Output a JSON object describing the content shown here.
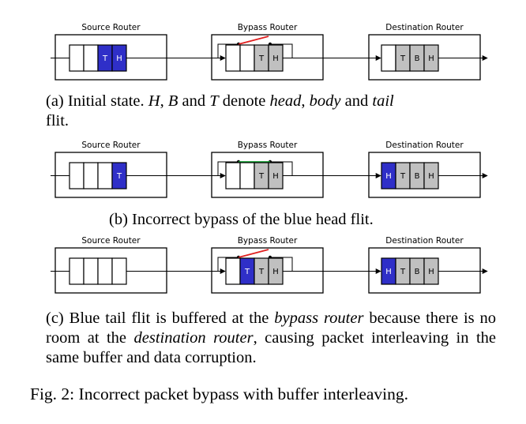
{
  "colors": {
    "head_blue": "#2f2fc8",
    "body_gray": "#c0c0c0",
    "bypass_open": "#e02020",
    "bypass_closed": "#10a030"
  },
  "routers": {
    "source": "Source Router",
    "bypass": "Bypass Router",
    "destination": "Destination Router"
  },
  "panels": [
    {
      "id": "a",
      "bypass_state": "open",
      "source_flits": [
        "",
        "",
        "T",
        "H"
      ],
      "bypass_flits": [
        "",
        "",
        "T",
        "H"
      ],
      "dest_flits": [
        "",
        "T",
        "B",
        "H"
      ]
    },
    {
      "id": "b",
      "bypass_state": "closed",
      "source_flits": [
        "",
        "",
        "",
        "T"
      ],
      "bypass_flits": [
        "",
        "",
        "T",
        "H"
      ],
      "dest_flits": [
        "H",
        "T",
        "B",
        "H"
      ]
    },
    {
      "id": "c",
      "bypass_state": "open",
      "source_flits": [
        "",
        "",
        "",
        ""
      ],
      "bypass_flits": [
        "",
        "T",
        "T",
        "H"
      ],
      "dest_flits": [
        "H",
        "T",
        "B",
        "H"
      ]
    }
  ],
  "captions": {
    "a_pre": "(a) Initial state. ",
    "a_h": "H",
    "a_sep1": ", ",
    "a_b": "B",
    "a_and1": " and ",
    "a_t": "T",
    "a_denote": " denote ",
    "a_head": "head",
    "a_sep2": ", ",
    "a_body": "body",
    "a_and2": " and ",
    "a_tail": "tail",
    "a_end": "flit.",
    "b": "(b) Incorrect bypass of the blue head flit.",
    "c_pre": "(c) Blue tail flit is buffered at the ",
    "c_bypass": "bypass router",
    "c_mid1": " because there is no room at the ",
    "c_dest": "destination router",
    "c_mid2": ", causing packet interleaving in the same buffer and data corruption.",
    "fig": "Fig. 2: Incorrect packet bypass with buffer interleaving."
  }
}
